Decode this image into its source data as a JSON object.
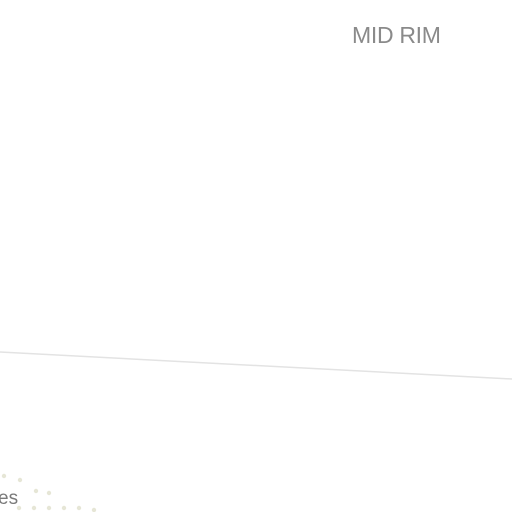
{
  "header": {
    "title": "MID RIM"
  },
  "footer": {
    "partial_text": "es"
  },
  "colors": {
    "heading": "#8a8a8a",
    "divider": "#e3e3e3",
    "dots": "#e6e6d6"
  }
}
